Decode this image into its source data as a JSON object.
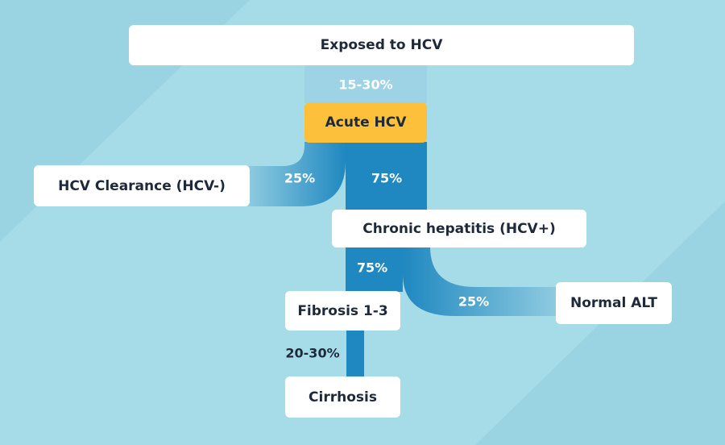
{
  "diagram": {
    "nodes": {
      "exposed": "Exposed to HCV",
      "acute": "Acute HCV",
      "clearance": "HCV Clearance (HCV-)",
      "chronic": "Chronic hepatitis (HCV+)",
      "normal_alt": "Normal ALT",
      "fibrosis": "Fibrosis 1-3",
      "cirrhosis": "Cirrhosis"
    },
    "percentages": {
      "exposed_to_acute": "15-30%",
      "acute_to_clearance": "25%",
      "acute_to_chronic": "75%",
      "chronic_to_fibrosis": "75%",
      "chronic_to_normal_alt": "25%",
      "fibrosis_to_cirrhosis": "20-30%"
    },
    "colors": {
      "background": "#a6dce8",
      "flow_light": "#9dd3e4",
      "flow_blue": "#1f88c0",
      "acute_node": "#fcc03a",
      "node": "#ffffff",
      "text": "#1e2a3a"
    }
  }
}
